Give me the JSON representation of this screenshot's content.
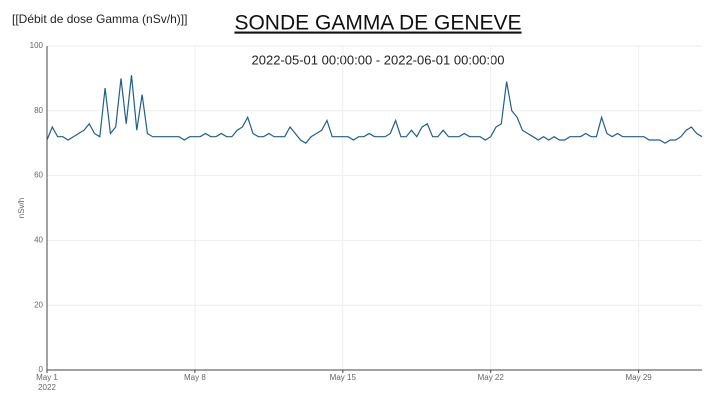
{
  "chart_data": {
    "type": "line",
    "header_label": "[[Débit de dose Gamma (nSv/h)]]",
    "title": "SONDE GAMMA DE GENEVE",
    "subtitle": "2022-05-01 00:00:00 - 2022-06-01 00:00:00",
    "y_label": "nSv/h",
    "xlim": [
      "2022-05-01 00:00",
      "2022-06-01 00:00"
    ],
    "xticks": [
      {
        "value": "2022-05-01 00:00",
        "label": "May 1\n2022"
      },
      {
        "value": "2022-05-08 00:00",
        "label": "May 8"
      },
      {
        "value": "2022-05-15 00:00",
        "label": "May 15"
      },
      {
        "value": "2022-05-22 00:00",
        "label": "May 22"
      },
      {
        "value": "2022-05-29 00:00",
        "label": "May 29"
      }
    ],
    "ylim": [
      0,
      100
    ],
    "yticks": [
      0,
      20,
      40,
      60,
      80,
      100
    ],
    "grid": true,
    "color": "#1f5f8f",
    "x": [
      "2022-05-01 00:00",
      "2022-05-01 06:00",
      "2022-05-01 12:00",
      "2022-05-01 18:00",
      "2022-05-02 00:00",
      "2022-05-02 06:00",
      "2022-05-02 12:00",
      "2022-05-02 18:00",
      "2022-05-03 00:00",
      "2022-05-03 06:00",
      "2022-05-03 12:00",
      "2022-05-03 18:00",
      "2022-05-04 00:00",
      "2022-05-04 06:00",
      "2022-05-04 12:00",
      "2022-05-04 18:00",
      "2022-05-05 00:00",
      "2022-05-05 06:00",
      "2022-05-05 12:00",
      "2022-05-05 18:00",
      "2022-05-06 00:00",
      "2022-05-06 06:00",
      "2022-05-06 12:00",
      "2022-05-06 18:00",
      "2022-05-07 00:00",
      "2022-05-07 06:00",
      "2022-05-07 12:00",
      "2022-05-07 18:00",
      "2022-05-08 00:00",
      "2022-05-08 06:00",
      "2022-05-08 12:00",
      "2022-05-08 18:00",
      "2022-05-09 00:00",
      "2022-05-09 06:00",
      "2022-05-09 12:00",
      "2022-05-09 18:00",
      "2022-05-10 00:00",
      "2022-05-10 06:00",
      "2022-05-10 12:00",
      "2022-05-10 18:00",
      "2022-05-11 00:00",
      "2022-05-11 06:00",
      "2022-05-11 12:00",
      "2022-05-11 18:00",
      "2022-05-12 00:00",
      "2022-05-12 06:00",
      "2022-05-12 12:00",
      "2022-05-12 18:00",
      "2022-05-13 00:00",
      "2022-05-13 06:00",
      "2022-05-13 12:00",
      "2022-05-13 18:00",
      "2022-05-14 00:00",
      "2022-05-14 06:00",
      "2022-05-14 12:00",
      "2022-05-14 18:00",
      "2022-05-15 00:00",
      "2022-05-15 06:00",
      "2022-05-15 12:00",
      "2022-05-15 18:00",
      "2022-05-16 00:00",
      "2022-05-16 06:00",
      "2022-05-16 12:00",
      "2022-05-16 18:00",
      "2022-05-17 00:00",
      "2022-05-17 06:00",
      "2022-05-17 12:00",
      "2022-05-17 18:00",
      "2022-05-18 00:00",
      "2022-05-18 06:00",
      "2022-05-18 12:00",
      "2022-05-18 18:00",
      "2022-05-19 00:00",
      "2022-05-19 06:00",
      "2022-05-19 12:00",
      "2022-05-19 18:00",
      "2022-05-20 00:00",
      "2022-05-20 06:00",
      "2022-05-20 12:00",
      "2022-05-20 18:00",
      "2022-05-21 00:00",
      "2022-05-21 06:00",
      "2022-05-21 12:00",
      "2022-05-21 18:00",
      "2022-05-22 00:00",
      "2022-05-22 06:00",
      "2022-05-22 12:00",
      "2022-05-22 18:00",
      "2022-05-23 00:00",
      "2022-05-23 06:00",
      "2022-05-23 12:00",
      "2022-05-23 18:00",
      "2022-05-24 00:00",
      "2022-05-24 06:00",
      "2022-05-24 12:00",
      "2022-05-24 18:00",
      "2022-05-25 00:00",
      "2022-05-25 06:00",
      "2022-05-25 12:00",
      "2022-05-25 18:00",
      "2022-05-26 00:00",
      "2022-05-26 06:00",
      "2022-05-26 12:00",
      "2022-05-26 18:00",
      "2022-05-27 00:00",
      "2022-05-27 06:00",
      "2022-05-27 12:00",
      "2022-05-27 18:00",
      "2022-05-28 00:00",
      "2022-05-28 06:00",
      "2022-05-28 12:00",
      "2022-05-28 18:00",
      "2022-05-29 00:00",
      "2022-05-29 06:00",
      "2022-05-29 12:00",
      "2022-05-29 18:00",
      "2022-05-30 00:00",
      "2022-05-30 06:00",
      "2022-05-30 12:00",
      "2022-05-30 18:00",
      "2022-05-31 00:00",
      "2022-05-31 06:00",
      "2022-05-31 12:00",
      "2022-05-31 18:00",
      "2022-06-01 00:00"
    ],
    "values": [
      71,
      75,
      72,
      72,
      71,
      72,
      73,
      74,
      76,
      73,
      72,
      87,
      73,
      75,
      90,
      76,
      91,
      74,
      85,
      73,
      72,
      72,
      72,
      72,
      72,
      72,
      71,
      72,
      72,
      72,
      73,
      72,
      72,
      73,
      72,
      72,
      74,
      75,
      78,
      73,
      72,
      72,
      73,
      72,
      72,
      72,
      75,
      73,
      71,
      70,
      72,
      73,
      74,
      77,
      72,
      72,
      72,
      72,
      71,
      72,
      72,
      73,
      72,
      72,
      72,
      73,
      77,
      72,
      72,
      74,
      72,
      75,
      76,
      72,
      72,
      74,
      72,
      72,
      72,
      73,
      72,
      72,
      72,
      71,
      72,
      75,
      76,
      89,
      80,
      78,
      74,
      73,
      72,
      71,
      72,
      71,
      72,
      71,
      71,
      72,
      72,
      72,
      73,
      72,
      72,
      78,
      73,
      72,
      73,
      72,
      72,
      72,
      72,
      72,
      71,
      71,
      71,
      70,
      71,
      71,
      72,
      74,
      75,
      73,
      72
    ]
  }
}
